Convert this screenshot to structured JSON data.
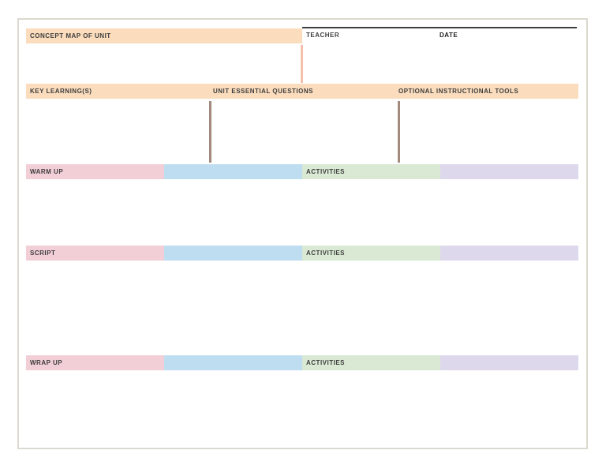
{
  "header": {
    "title": "CONCEPT MAP OF UNIT",
    "teacher_label": "TEACHER",
    "date_label": "DATE"
  },
  "key_row": {
    "key_learnings_label": "KEY LEARNING(S)",
    "unit_essential_questions_label": "UNIT ESSENTIAL QUESTIONS",
    "optional_instructional_tools_label": "OPTIONAL INSTRUCTIONAL TOOLS"
  },
  "sections": [
    {
      "label": "WARM UP",
      "activities_label": "ACTIVITIES"
    },
    {
      "label": "SCRIPT",
      "activities_label": "ACTIVITIES"
    },
    {
      "label": "WRAP UP",
      "activities_label": "ACTIVITIES"
    }
  ],
  "colors": {
    "header_bar": "#fbdcbd",
    "connector_salmon": "#f5c0ab",
    "connector_brown": "#a28b7e",
    "row_pink": "#f2ced6",
    "row_blue": "#bfddf1",
    "row_green": "#d9e9d3",
    "row_purple": "#ded8ed",
    "top_rule": "#3f3f3f",
    "text": "#3e3e3e",
    "page_border": "#dbd9cf"
  }
}
